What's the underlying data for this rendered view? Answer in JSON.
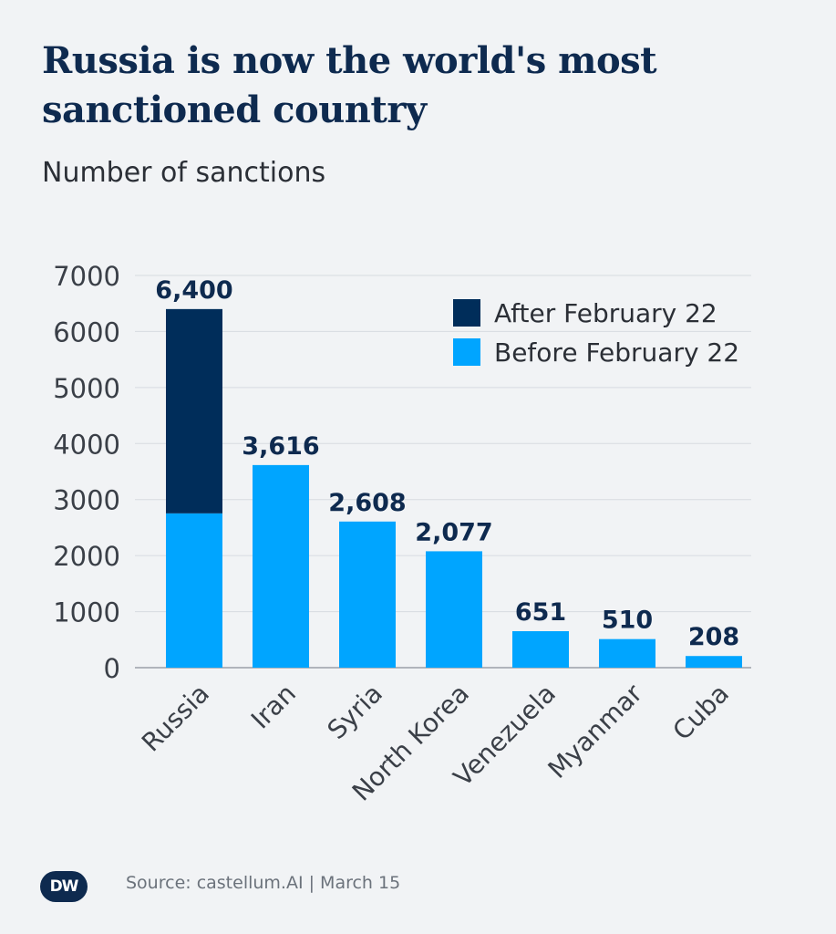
{
  "title": "Russia is now the world's most sanctioned country",
  "subtitle": "Number of sanctions",
  "source": "Source: castellum.AI | March 15",
  "logo_text": "DW",
  "colors": {
    "after": "#002d5a",
    "before": "#00a5ff",
    "grid": "#d7dbe0",
    "label": "#0e2a4f",
    "axis_text": "#3a3f47"
  },
  "chart_data": {
    "type": "bar",
    "stacked": true,
    "title": "Russia is now the world's most sanctioned country",
    "ylabel": "Number of sanctions",
    "xlabel": "",
    "ylim": [
      0,
      7000
    ],
    "yticks": [
      0,
      1000,
      2000,
      3000,
      4000,
      5000,
      6000,
      7000
    ],
    "grid": true,
    "legend_position": "top-right",
    "categories": [
      "Russia",
      "Iran",
      "Syria",
      "North Korea",
      "Venezuela",
      "Myanmar",
      "Cuba"
    ],
    "series": [
      {
        "name": "Before February 22",
        "values": [
          2754,
          3616,
          2608,
          2077,
          651,
          510,
          208
        ]
      },
      {
        "name": "After February 22",
        "values": [
          3646,
          0,
          0,
          0,
          0,
          0,
          0
        ]
      }
    ],
    "totals": [
      6400,
      3616,
      2608,
      2077,
      651,
      510,
      208
    ],
    "total_labels": [
      "6,400",
      "3,616",
      "2,608",
      "2,077",
      "651",
      "510",
      "208"
    ],
    "legend": [
      "After February 22",
      "Before February 22"
    ]
  }
}
